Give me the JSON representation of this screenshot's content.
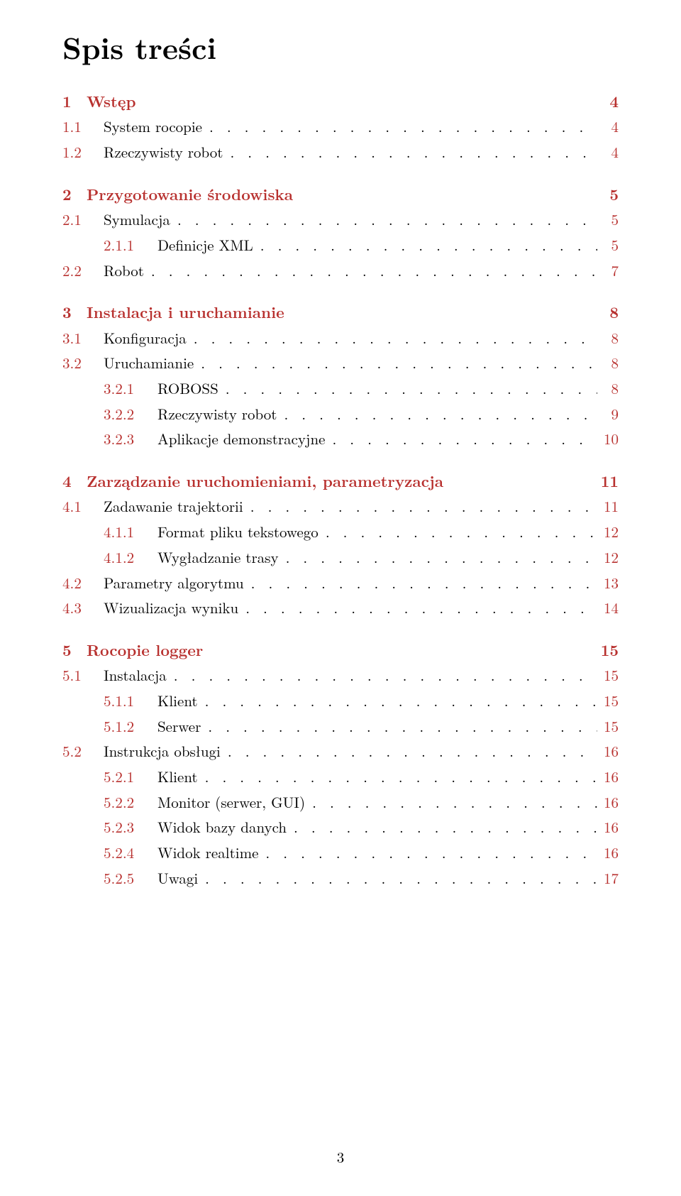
{
  "title": "Spis treści",
  "link_color": "#b8312f",
  "text_color": "#000000",
  "background_color": "#ffffff",
  "fontsize_title": 42,
  "fontsize_entry": 21,
  "page_number": "3",
  "toc": [
    {
      "level": 0,
      "num": "1",
      "label": "Wstęp",
      "page": "4",
      "leader": false
    },
    {
      "level": 1,
      "num": "1.1",
      "label": "System rocopie",
      "page": "4",
      "leader": true
    },
    {
      "level": 1,
      "num": "1.2",
      "label": "Rzeczywisty robot",
      "page": "4",
      "leader": true
    },
    {
      "level": 0,
      "num": "2",
      "label": "Przygotowanie środowiska",
      "page": "5",
      "leader": false
    },
    {
      "level": 1,
      "num": "2.1",
      "label": "Symulacja",
      "page": "5",
      "leader": true
    },
    {
      "level": 2,
      "num": "2.1.1",
      "label": "Definicje XML",
      "page": "5",
      "leader": true
    },
    {
      "level": 1,
      "num": "2.2",
      "label": "Robot",
      "page": "7",
      "leader": true
    },
    {
      "level": 0,
      "num": "3",
      "label": "Instalacja i uruchamianie",
      "page": "8",
      "leader": false
    },
    {
      "level": 1,
      "num": "3.1",
      "label": "Konfiguracja",
      "page": "8",
      "leader": true
    },
    {
      "level": 1,
      "num": "3.2",
      "label": "Uruchamianie",
      "page": "8",
      "leader": true
    },
    {
      "level": 2,
      "num": "3.2.1",
      "label": "ROBOSS",
      "page": "8",
      "leader": true
    },
    {
      "level": 2,
      "num": "3.2.2",
      "label": "Rzeczywisty robot",
      "page": "9",
      "leader": true
    },
    {
      "level": 2,
      "num": "3.2.3",
      "label": "Aplikacje demonstracyjne",
      "page": "10",
      "leader": true
    },
    {
      "level": 0,
      "num": "4",
      "label": "Zarządzanie uruchomieniami, parametryzacja",
      "page": "11",
      "leader": false
    },
    {
      "level": 1,
      "num": "4.1",
      "label": "Zadawanie trajektorii",
      "page": "11",
      "leader": true
    },
    {
      "level": 2,
      "num": "4.1.1",
      "label": "Format pliku tekstowego",
      "page": "12",
      "leader": true
    },
    {
      "level": 2,
      "num": "4.1.2",
      "label": "Wygładzanie trasy",
      "page": "12",
      "leader": true
    },
    {
      "level": 1,
      "num": "4.2",
      "label": "Parametry algorytmu",
      "page": "13",
      "leader": true
    },
    {
      "level": 1,
      "num": "4.3",
      "label": "Wizualizacja wyniku",
      "page": "14",
      "leader": true
    },
    {
      "level": 0,
      "num": "5",
      "label": "Rocopie logger",
      "page": "15",
      "leader": false
    },
    {
      "level": 1,
      "num": "5.1",
      "label": "Instalacja",
      "page": "15",
      "leader": true
    },
    {
      "level": 2,
      "num": "5.1.1",
      "label": "Klient",
      "page": "15",
      "leader": true
    },
    {
      "level": 2,
      "num": "5.1.2",
      "label": "Serwer",
      "page": "15",
      "leader": true
    },
    {
      "level": 1,
      "num": "5.2",
      "label": "Instrukcja obsługi",
      "page": "16",
      "leader": true
    },
    {
      "level": 2,
      "num": "5.2.1",
      "label": "Klient",
      "page": "16",
      "leader": true
    },
    {
      "level": 2,
      "num": "5.2.2",
      "label": "Monitor (serwer, GUI)",
      "page": "16",
      "leader": true
    },
    {
      "level": 2,
      "num": "5.2.3",
      "label": "Widok bazy danych",
      "page": "16",
      "leader": true
    },
    {
      "level": 2,
      "num": "5.2.4",
      "label": "Widok realtime",
      "page": "16",
      "leader": true
    },
    {
      "level": 2,
      "num": "5.2.5",
      "label": "Uwagi",
      "page": "17",
      "leader": true
    }
  ]
}
